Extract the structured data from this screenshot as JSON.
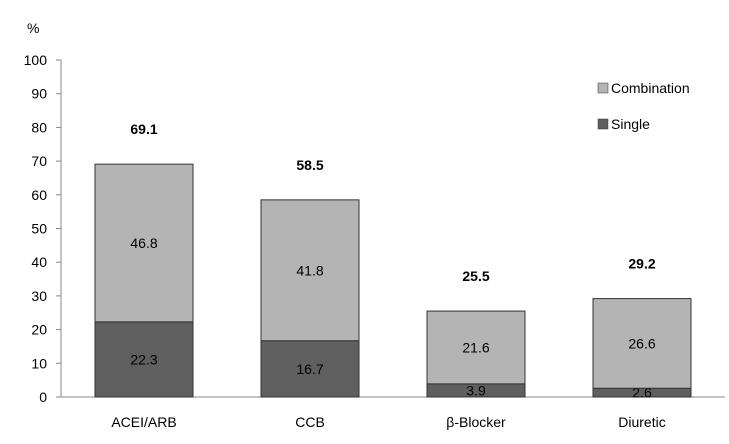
{
  "chart_data": {
    "type": "bar",
    "stacked": true,
    "ylabel": "%",
    "ylim": [
      0,
      100
    ],
    "yticks": [
      0,
      10,
      20,
      30,
      40,
      50,
      60,
      70,
      80,
      90,
      100
    ],
    "categories": [
      "ACEI/ARB",
      "CCB",
      "β-Blocker",
      "Diuretic"
    ],
    "series": [
      {
        "name": "Single",
        "values": [
          22.3,
          16.7,
          3.9,
          2.6
        ],
        "color": "#5f5f5f"
      },
      {
        "name": "Combination",
        "values": [
          46.8,
          41.8,
          21.6,
          26.6
        ],
        "color": "#b4b4b4"
      }
    ],
    "totals": [
      "69.1",
      "58.5",
      "25.5",
      "29.2"
    ],
    "segment_labels": {
      "Single": [
        "22.3",
        "16.7",
        "3.9",
        "2.6"
      ],
      "Combination": [
        "46.8",
        "41.8",
        "21.6",
        "26.6"
      ]
    },
    "legend": {
      "position": "top-right",
      "order": [
        "Combination",
        "Single"
      ]
    },
    "grid": false
  }
}
